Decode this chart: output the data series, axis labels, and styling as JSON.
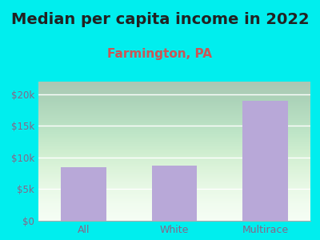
{
  "title": "Median per capita income in 2022",
  "subtitle": "Farmington, PA",
  "categories": [
    "All",
    "White",
    "Multirace"
  ],
  "values": [
    8500,
    8700,
    19000
  ],
  "bar_color": "#b8a8d8",
  "title_fontsize": 14,
  "title_color": "#222222",
  "subtitle_fontsize": 11,
  "subtitle_color": "#cc5555",
  "tick_color": "#886688",
  "background_outer": "#00eeee",
  "background_inner": "#f5fff5",
  "ylim": [
    0,
    22000
  ],
  "yticks": [
    0,
    5000,
    10000,
    15000,
    20000
  ],
  "ytick_labels": [
    "$0",
    "$5k",
    "$10k",
    "$15k",
    "$20k"
  ]
}
